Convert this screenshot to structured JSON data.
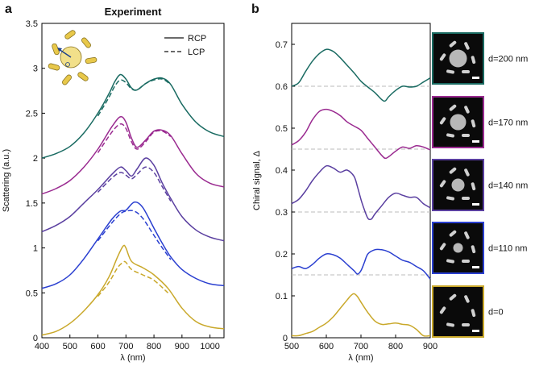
{
  "panel_labels": {
    "a": "a",
    "b": "b"
  },
  "colors": {
    "teal": "#1a6b62",
    "magenta": "#9a2a90",
    "purple": "#5a3fa0",
    "blue": "#2a3fd0",
    "gold": "#c9a82a",
    "baseline": "#bbbbbb",
    "axis": "#000000"
  },
  "chart_data": [
    {
      "type": "line",
      "title": "Experiment",
      "xlabel": "λ (nm)",
      "ylabel": "Scattering (a.u.)",
      "xlim": [
        400,
        1050
      ],
      "ylim": [
        0,
        3.5
      ],
      "xticks": [
        400,
        500,
        600,
        700,
        800,
        900,
        1000
      ],
      "xtick_labels": [
        "400",
        "500",
        "600",
        "700",
        "800",
        "900",
        "1000"
      ],
      "yticks": [
        0,
        0.5,
        1,
        1.5,
        2,
        2.5,
        3,
        3.5
      ],
      "ytick_labels": [
        "0",
        "0.5",
        "1",
        "1.5",
        "2",
        "2.5",
        "3",
        "3.5"
      ],
      "legend": {
        "placement": "top-right",
        "entries": [
          {
            "label": "RCP",
            "style": "solid"
          },
          {
            "label": "LCP",
            "style": "dashed"
          }
        ]
      },
      "series": [
        {
          "name": "d=200 nm RCP",
          "color": "teal",
          "style": "solid",
          "x": [
            400,
            450,
            500,
            550,
            600,
            640,
            660,
            680,
            700,
            720,
            740,
            770,
            800,
            830,
            860,
            900,
            950,
            1000,
            1050
          ],
          "y": [
            2.0,
            2.05,
            2.13,
            2.28,
            2.5,
            2.72,
            2.85,
            2.93,
            2.88,
            2.78,
            2.76,
            2.83,
            2.88,
            2.89,
            2.82,
            2.6,
            2.4,
            2.29,
            2.24
          ]
        },
        {
          "name": "d=200 nm LCP",
          "color": "teal",
          "style": "dashed",
          "x": [
            600,
            640,
            660,
            680,
            700,
            720,
            740,
            770,
            800,
            830,
            860
          ],
          "y": [
            2.47,
            2.68,
            2.8,
            2.87,
            2.84,
            2.77,
            2.76,
            2.83,
            2.87,
            2.88,
            2.82
          ]
        },
        {
          "name": "d=170 nm RCP",
          "color": "magenta",
          "style": "solid",
          "x": [
            400,
            450,
            500,
            550,
            600,
            650,
            680,
            700,
            720,
            740,
            770,
            800,
            830,
            860,
            900,
            950,
            1000,
            1050
          ],
          "y": [
            1.6,
            1.66,
            1.75,
            1.9,
            2.1,
            2.35,
            2.46,
            2.4,
            2.22,
            2.12,
            2.2,
            2.3,
            2.31,
            2.25,
            2.05,
            1.83,
            1.72,
            1.68
          ]
        },
        {
          "name": "d=170 nm LCP",
          "color": "magenta",
          "style": "dashed",
          "x": [
            600,
            650,
            680,
            700,
            720,
            740,
            770,
            800,
            830,
            860
          ],
          "y": [
            2.06,
            2.29,
            2.38,
            2.33,
            2.18,
            2.1,
            2.18,
            2.29,
            2.3,
            2.24
          ]
        },
        {
          "name": "d=140 nm RCP",
          "color": "purple",
          "style": "solid",
          "x": [
            400,
            450,
            500,
            550,
            600,
            650,
            680,
            700,
            720,
            740,
            770,
            800,
            830,
            860,
            900,
            950,
            1000,
            1050
          ],
          "y": [
            1.18,
            1.25,
            1.35,
            1.5,
            1.65,
            1.82,
            1.9,
            1.86,
            1.8,
            1.88,
            2.0,
            1.92,
            1.72,
            1.55,
            1.35,
            1.2,
            1.12,
            1.08
          ]
        },
        {
          "name": "d=140 nm LCP",
          "color": "purple",
          "style": "dashed",
          "x": [
            600,
            650,
            680,
            700,
            720,
            740,
            770,
            800,
            830,
            860
          ],
          "y": [
            1.62,
            1.78,
            1.84,
            1.81,
            1.77,
            1.82,
            1.9,
            1.84,
            1.68,
            1.52
          ]
        },
        {
          "name": "d=110 nm RCP",
          "color": "blue",
          "style": "solid",
          "x": [
            400,
            450,
            500,
            550,
            600,
            650,
            680,
            700,
            730,
            760,
            800,
            830,
            860,
            900,
            950,
            1000,
            1050
          ],
          "y": [
            0.55,
            0.6,
            0.7,
            0.88,
            1.1,
            1.32,
            1.41,
            1.42,
            1.51,
            1.45,
            1.22,
            1.05,
            0.9,
            0.76,
            0.66,
            0.6,
            0.58
          ]
        },
        {
          "name": "d=110 nm LCP",
          "color": "blue",
          "style": "dashed",
          "x": [
            600,
            650,
            680,
            700,
            730,
            760,
            800,
            830,
            860
          ],
          "y": [
            1.08,
            1.28,
            1.38,
            1.41,
            1.41,
            1.33,
            1.14,
            1.0,
            0.87
          ]
        },
        {
          "name": "d=0 RCP",
          "color": "gold",
          "style": "solid",
          "x": [
            400,
            450,
            500,
            550,
            600,
            640,
            670,
            690,
            700,
            720,
            760,
            800,
            850,
            900,
            950,
            1000,
            1050
          ],
          "y": [
            0.03,
            0.07,
            0.16,
            0.3,
            0.48,
            0.68,
            0.9,
            1.02,
            1.0,
            0.85,
            0.78,
            0.7,
            0.55,
            0.33,
            0.18,
            0.12,
            0.1
          ]
        },
        {
          "name": "d=0 LCP",
          "color": "gold",
          "style": "dashed",
          "x": [
            600,
            640,
            670,
            690,
            700,
            720,
            760,
            800,
            850
          ],
          "y": [
            0.46,
            0.62,
            0.78,
            0.84,
            0.84,
            0.76,
            0.7,
            0.64,
            0.5
          ]
        }
      ]
    },
    {
      "type": "line",
      "xlabel": "λ (nm)",
      "ylabel": "Chiral signal, Δ",
      "xlim": [
        500,
        900
      ],
      "ylim": [
        0,
        0.75
      ],
      "xticks": [
        500,
        600,
        700,
        800,
        900
      ],
      "xtick_labels": [
        "500",
        "600",
        "700",
        "800",
        "900"
      ],
      "yticks": [
        0,
        0.1,
        0.2,
        0.3,
        0.4,
        0.5,
        0.6,
        0.7
      ],
      "ytick_labels": [
        "0",
        "0.1",
        "0.2",
        "0.3",
        "0.4",
        "0.5",
        "0.6",
        "0.7"
      ],
      "baselines": [
        0.6,
        0.45,
        0.3,
        0.15
      ],
      "series": [
        {
          "name": "d=200 nm",
          "color": "teal",
          "x": [
            500,
            520,
            540,
            560,
            580,
            600,
            620,
            640,
            660,
            680,
            700,
            720,
            740,
            760,
            770,
            780,
            800,
            820,
            840,
            860,
            880,
            900
          ],
          "y": [
            0.6,
            0.608,
            0.635,
            0.66,
            0.678,
            0.688,
            0.683,
            0.668,
            0.65,
            0.632,
            0.612,
            0.598,
            0.585,
            0.568,
            0.565,
            0.575,
            0.59,
            0.6,
            0.598,
            0.6,
            0.61,
            0.62
          ]
        },
        {
          "name": "d=170 nm",
          "color": "magenta",
          "x": [
            500,
            520,
            540,
            560,
            580,
            600,
            620,
            640,
            660,
            680,
            700,
            720,
            740,
            760,
            770,
            780,
            800,
            820,
            840,
            860,
            880,
            900
          ],
          "y": [
            0.46,
            0.47,
            0.49,
            0.52,
            0.54,
            0.545,
            0.54,
            0.53,
            0.515,
            0.505,
            0.495,
            0.475,
            0.455,
            0.435,
            0.428,
            0.432,
            0.445,
            0.455,
            0.452,
            0.458,
            0.455,
            0.448
          ]
        },
        {
          "name": "d=140 nm",
          "color": "purple",
          "x": [
            500,
            520,
            540,
            560,
            580,
            600,
            620,
            640,
            660,
            680,
            690,
            700,
            710,
            720,
            730,
            740,
            760,
            780,
            800,
            820,
            840,
            860,
            880,
            900
          ],
          "y": [
            0.32,
            0.33,
            0.35,
            0.375,
            0.395,
            0.41,
            0.405,
            0.395,
            0.4,
            0.385,
            0.36,
            0.33,
            0.305,
            0.285,
            0.283,
            0.295,
            0.315,
            0.335,
            0.345,
            0.34,
            0.335,
            0.335,
            0.32,
            0.31
          ]
        },
        {
          "name": "d=110 nm",
          "color": "blue",
          "x": [
            500,
            520,
            540,
            560,
            580,
            600,
            620,
            640,
            660,
            680,
            690,
            700,
            710,
            720,
            740,
            760,
            780,
            800,
            820,
            840,
            860,
            880,
            900
          ],
          "y": [
            0.165,
            0.17,
            0.165,
            0.175,
            0.19,
            0.2,
            0.198,
            0.19,
            0.175,
            0.16,
            0.152,
            0.16,
            0.18,
            0.2,
            0.21,
            0.21,
            0.205,
            0.195,
            0.185,
            0.18,
            0.17,
            0.16,
            0.14
          ]
        },
        {
          "name": "d=0",
          "color": "gold",
          "x": [
            500,
            520,
            540,
            560,
            580,
            600,
            620,
            640,
            660,
            670,
            680,
            690,
            700,
            720,
            740,
            760,
            780,
            800,
            820,
            840,
            860,
            880,
            900
          ],
          "y": [
            0.005,
            0.005,
            0.01,
            0.015,
            0.025,
            0.035,
            0.05,
            0.07,
            0.09,
            0.1,
            0.105,
            0.098,
            0.085,
            0.06,
            0.04,
            0.032,
            0.033,
            0.035,
            0.032,
            0.03,
            0.02,
            0.005,
            0.005
          ]
        }
      ]
    }
  ],
  "sem_panels": [
    {
      "label": "d=200 nm",
      "border_color": "teal",
      "center": true
    },
    {
      "label": "d=170 nm",
      "border_color": "magenta",
      "center": true
    },
    {
      "label": "d=140 nm",
      "border_color": "purple",
      "center": true
    },
    {
      "label": "d=110 nm",
      "border_color": "blue",
      "center": true
    },
    {
      "label": "d=0",
      "border_color": "gold",
      "center": false
    }
  ]
}
